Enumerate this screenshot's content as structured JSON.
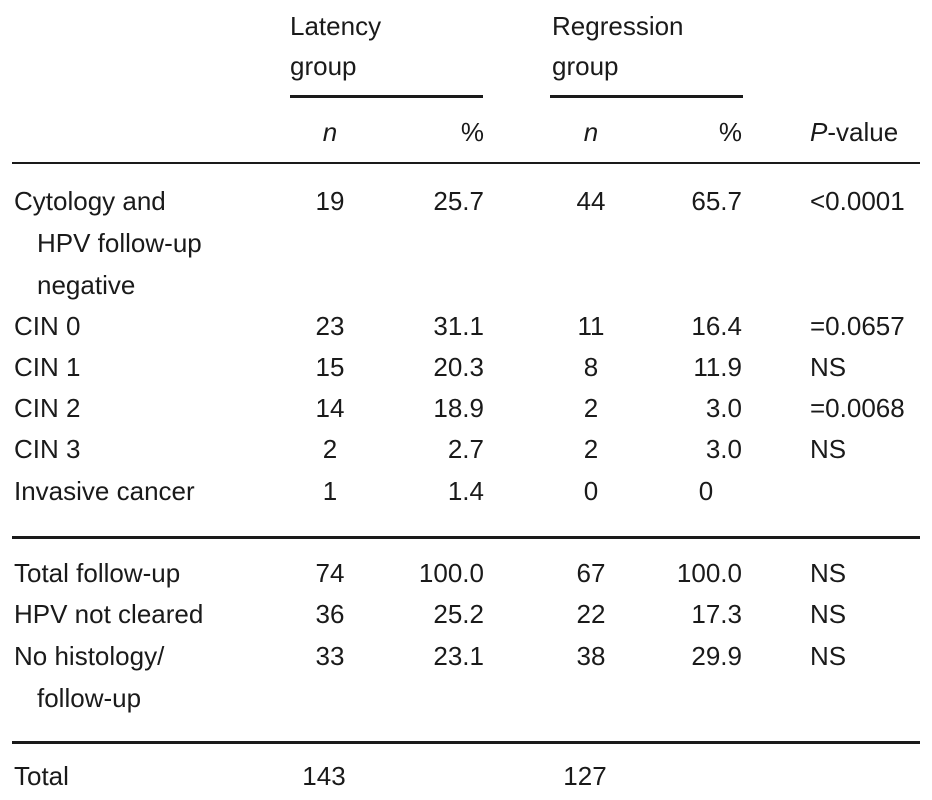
{
  "table": {
    "groups": {
      "latency_line1": "Latency",
      "latency_line2": "group",
      "regression_line1": "Regression",
      "regression_line2": "group"
    },
    "columns": {
      "n": "n",
      "pct": "%",
      "p_italic": "P",
      "p_rest": "-value"
    },
    "rows": [
      {
        "label": [
          "Cytology and",
          "HPV follow-up",
          "negative"
        ],
        "lat_n": "19",
        "lat_pct": "25.7",
        "reg_n": "44",
        "reg_pct": "65.7",
        "p": "<0.0001"
      },
      {
        "label": [
          "CIN 0"
        ],
        "lat_n": "23",
        "lat_pct": "31.1",
        "reg_n": "11",
        "reg_pct": "16.4",
        "p": "=0.0657"
      },
      {
        "label": [
          "CIN 1"
        ],
        "lat_n": "15",
        "lat_pct": "20.3",
        "reg_n": "8",
        "reg_pct": "11.9",
        "p": "NS"
      },
      {
        "label": [
          "CIN 2"
        ],
        "lat_n": "14",
        "lat_pct": "18.9",
        "reg_n": "2",
        "reg_pct": "3.0",
        "p": "=0.0068"
      },
      {
        "label": [
          "CIN 3"
        ],
        "lat_n": "2",
        "lat_pct": "2.7",
        "reg_n": "2",
        "reg_pct": "3.0",
        "p": "NS"
      },
      {
        "label": [
          "Invasive cancer"
        ],
        "lat_n": "1",
        "lat_pct": "1.4",
        "reg_n": "0",
        "reg_pct": "0",
        "p": ""
      },
      {
        "label": [
          "Total follow-up"
        ],
        "lat_n": "74",
        "lat_pct": "100.0",
        "reg_n": "67",
        "reg_pct": "100.0",
        "p": "NS"
      },
      {
        "label": [
          "HPV not cleared"
        ],
        "lat_n": "36",
        "lat_pct": "25.2",
        "reg_n": "22",
        "reg_pct": "17.3",
        "p": "NS"
      },
      {
        "label": [
          "No histology/",
          "follow-up"
        ],
        "lat_n": "33",
        "lat_pct": "23.1",
        "reg_n": "38",
        "reg_pct": "29.9",
        "p": "NS"
      },
      {
        "label": [
          "Total"
        ],
        "lat_n": "143",
        "lat_pct": "",
        "reg_n": "127",
        "reg_pct": "",
        "p": ""
      }
    ]
  }
}
